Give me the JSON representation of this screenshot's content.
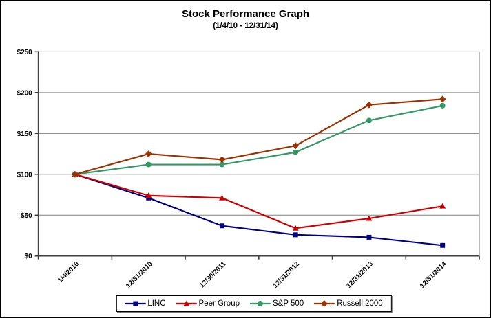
{
  "chart_data": {
    "type": "line",
    "title": "Stock Performance Graph",
    "subtitle": "(1/4/10 - 12/31/14)",
    "categories": [
      "1/4/2010",
      "12/31/2010",
      "12/30/2011",
      "12/31/2012",
      "12/31/2013",
      "12/31/2014"
    ],
    "series": [
      {
        "name": "LINC",
        "color": "#000080",
        "marker": "square",
        "values": [
          100,
          71,
          37,
          26,
          23,
          13
        ]
      },
      {
        "name": "Peer Group",
        "color": "#cc0000",
        "marker": "triangle",
        "values": [
          100,
          74,
          71,
          34,
          46,
          61
        ]
      },
      {
        "name": "S&P 500",
        "color": "#339966",
        "marker": "circle",
        "values": [
          100,
          112,
          112,
          127,
          166,
          184
        ]
      },
      {
        "name": "Russell 2000",
        "color": "#993300",
        "marker": "diamond",
        "values": [
          100,
          125,
          118,
          135,
          185,
          192
        ]
      }
    ],
    "y_axis": {
      "min": 0,
      "max": 250,
      "step": 50,
      "tick_labels": [
        "$0",
        "$50",
        "$100",
        "$150",
        "$200",
        "$250"
      ]
    },
    "grid": true,
    "grid_color": "#808080",
    "axis_color": "#404040",
    "legend_position": "bottom"
  }
}
